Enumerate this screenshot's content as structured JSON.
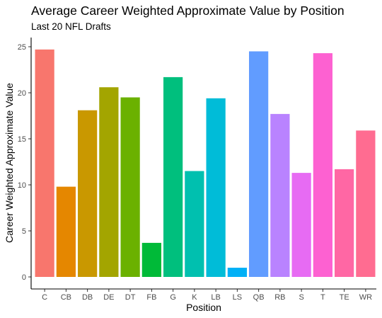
{
  "chart_data": {
    "type": "bar",
    "title": "Average Career Weighted Approximate Value by Position",
    "subtitle": "Last 20 NFL Drafts",
    "xlabel": "Position",
    "ylabel": "Career Weighted Approximate Value",
    "ylim": [
      0,
      25.5
    ],
    "yticks": [
      0,
      5,
      10,
      15,
      20,
      25
    ],
    "grid": false,
    "legend": "none",
    "categories": [
      "C",
      "CB",
      "DB",
      "DE",
      "DT",
      "FB",
      "G",
      "K",
      "LB",
      "LS",
      "QB",
      "RB",
      "S",
      "T",
      "TE",
      "WR"
    ],
    "values": [
      24.7,
      9.8,
      18.1,
      20.6,
      19.5,
      3.7,
      21.7,
      11.5,
      19.4,
      1.0,
      24.5,
      17.7,
      11.3,
      24.3,
      11.7,
      15.9
    ],
    "colors": [
      "#F8766D",
      "#E58700",
      "#C99800",
      "#A3A500",
      "#6BB100",
      "#00BA38",
      "#00BF7D",
      "#00C0AF",
      "#00BCD8",
      "#00B0F6",
      "#619CFF",
      "#B983FF",
      "#E76BF3",
      "#FD61D1",
      "#FF67A4",
      "#FF6C91"
    ]
  }
}
